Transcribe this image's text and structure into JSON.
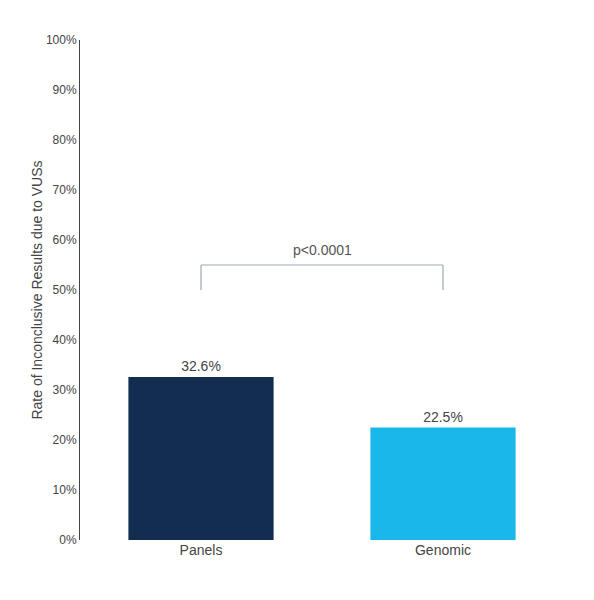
{
  "chart_data": {
    "type": "bar",
    "categories": [
      "Panels",
      "Genomic"
    ],
    "values": [
      32.6,
      22.5
    ],
    "value_labels": [
      "32.6%",
      "22.5%"
    ],
    "data_labels": true,
    "colors": [
      "#132d50",
      "#1ab8ea"
    ],
    "ylabel": "Rate of Inconclusive Results due to VUSs",
    "ylim": [
      0,
      100
    ],
    "yticks": [
      {
        "value": 0,
        "label": "0%"
      },
      {
        "value": 10,
        "label": "10%"
      },
      {
        "value": 20,
        "label": "20%"
      },
      {
        "value": 30,
        "label": "30%"
      },
      {
        "value": 40,
        "label": "40%"
      },
      {
        "value": 50,
        "label": "50%"
      },
      {
        "value": 60,
        "label": "60%"
      },
      {
        "value": 70,
        "label": "70%"
      },
      {
        "value": 80,
        "label": "80%"
      },
      {
        "value": 90,
        "label": "90%"
      },
      {
        "value": 100,
        "label": "100%"
      }
    ],
    "annotations": [
      "p<0.0001"
    ],
    "grid": false
  }
}
